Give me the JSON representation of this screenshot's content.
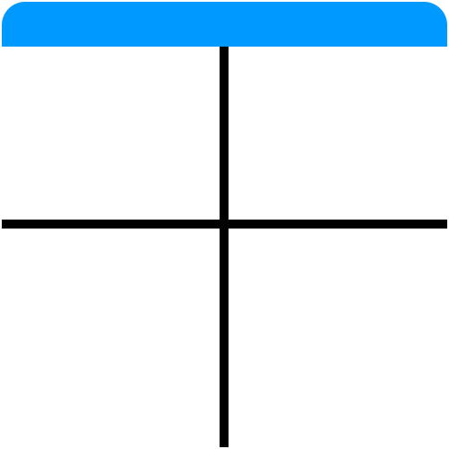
{
  "colors": {
    "header": "#0099ff",
    "lines": "#000000",
    "background": "#ffffff"
  }
}
